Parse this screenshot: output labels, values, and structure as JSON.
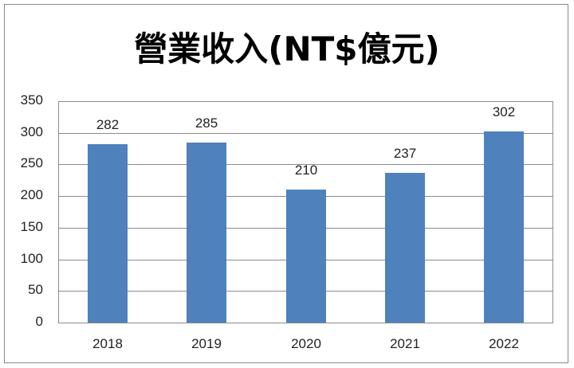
{
  "chart_data": {
    "type": "bar",
    "title": "營業收入(NT$億元)",
    "categories": [
      "2018",
      "2019",
      "2020",
      "2021",
      "2022"
    ],
    "values": [
      282,
      285,
      210,
      237,
      302
    ],
    "xlabel": "",
    "ylabel": "",
    "ylim": [
      0,
      350
    ],
    "yticks": [
      0,
      50,
      100,
      150,
      200,
      250,
      300,
      350
    ],
    "grid": true,
    "legend": "none",
    "bar_color": "#4f81bd",
    "data_labels": true
  },
  "ytick_labels": [
    "350",
    "300",
    "250",
    "200",
    "150",
    "100",
    "50",
    "0"
  ]
}
